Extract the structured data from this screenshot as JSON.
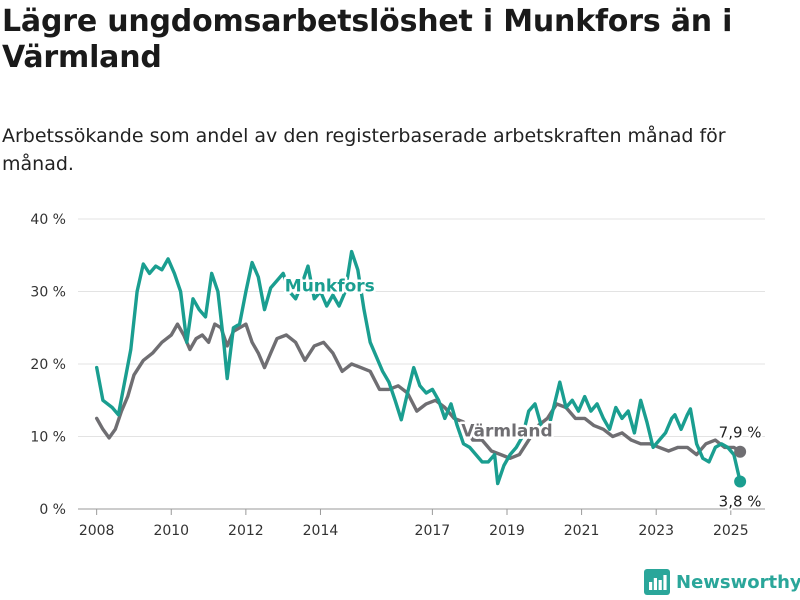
{
  "title": "Lägre ungdomsarbetslöshet i Munkfors än i Värmland",
  "subtitle": "Arbetssökande som andel av den registerbaserade arbetskraften månad för månad.",
  "brand": {
    "name": "Newsworthy",
    "icon": "bar-chart-logo-icon"
  },
  "colors": {
    "munkfors": "#1a9e90",
    "varmland": "#6f6e72",
    "grid": "#e3e3e3"
  },
  "chart_data": {
    "type": "line",
    "ylim": [
      0,
      40
    ],
    "xlim": [
      "2007-07",
      "2025-12"
    ],
    "yticks": [
      0,
      10,
      20,
      30,
      40
    ],
    "ytick_labels": [
      "0 %",
      "10 %",
      "20 %",
      "30 %",
      "40 %"
    ],
    "xticks": [
      "2008-01",
      "2010-01",
      "2012-01",
      "2014-01",
      "2017-01",
      "2019-01",
      "2021-01",
      "2023-01",
      "2025-01"
    ],
    "xtick_labels": [
      "2008",
      "2010",
      "2012",
      "2014",
      "2017",
      "2019",
      "2021",
      "2023",
      "2025"
    ],
    "grid": true,
    "series": [
      {
        "name": "Munkfors",
        "color": "#1a9e90",
        "points": [
          [
            "2008-01",
            19.5
          ],
          [
            "2008-03",
            15.0
          ],
          [
            "2008-06",
            14.0
          ],
          [
            "2008-08",
            13.0
          ],
          [
            "2008-10",
            17.5
          ],
          [
            "2008-12",
            22.0
          ],
          [
            "2009-02",
            30.0
          ],
          [
            "2009-04",
            33.8
          ],
          [
            "2009-06",
            32.5
          ],
          [
            "2009-08",
            33.5
          ],
          [
            "2009-10",
            33.0
          ],
          [
            "2009-12",
            34.5
          ],
          [
            "2010-02",
            32.5
          ],
          [
            "2010-04",
            30.0
          ],
          [
            "2010-06",
            23.0
          ],
          [
            "2010-08",
            29.0
          ],
          [
            "2010-10",
            27.5
          ],
          [
            "2010-12",
            26.5
          ],
          [
            "2011-02",
            32.5
          ],
          [
            "2011-04",
            30.0
          ],
          [
            "2011-06",
            22.5
          ],
          [
            "2011-07",
            18.0
          ],
          [
            "2011-09",
            25.0
          ],
          [
            "2011-11",
            25.5
          ],
          [
            "2012-01",
            30.0
          ],
          [
            "2012-03",
            34.0
          ],
          [
            "2012-05",
            32.0
          ],
          [
            "2012-07",
            27.5
          ],
          [
            "2012-09",
            30.5
          ],
          [
            "2012-11",
            31.5
          ],
          [
            "2013-01",
            32.5
          ],
          [
            "2013-03",
            30.0
          ],
          [
            "2013-05",
            29.0
          ],
          [
            "2013-07",
            31.0
          ],
          [
            "2013-09",
            33.5
          ],
          [
            "2013-11",
            29.0
          ],
          [
            "2014-01",
            30.0
          ],
          [
            "2014-03",
            28.0
          ],
          [
            "2014-05",
            29.5
          ],
          [
            "2014-07",
            28.0
          ],
          [
            "2014-09",
            30.0
          ],
          [
            "2014-11",
            35.5
          ],
          [
            "2015-01",
            33.0
          ],
          [
            "2015-03",
            27.5
          ],
          [
            "2015-05",
            23.0
          ],
          [
            "2015-07",
            21.0
          ],
          [
            "2015-09",
            19.0
          ],
          [
            "2015-11",
            17.5
          ],
          [
            "2016-01",
            15.0
          ],
          [
            "2016-03",
            12.3
          ],
          [
            "2016-05",
            16.0
          ],
          [
            "2016-07",
            19.5
          ],
          [
            "2016-09",
            17.0
          ],
          [
            "2016-11",
            16.0
          ],
          [
            "2017-01",
            16.5
          ],
          [
            "2017-03",
            15.0
          ],
          [
            "2017-05",
            12.5
          ],
          [
            "2017-07",
            14.5
          ],
          [
            "2017-09",
            11.5
          ],
          [
            "2017-11",
            9.0
          ],
          [
            "2018-01",
            8.5
          ],
          [
            "2018-03",
            7.5
          ],
          [
            "2018-05",
            6.5
          ],
          [
            "2018-07",
            6.5
          ],
          [
            "2018-09",
            7.5
          ],
          [
            "2018-10",
            3.5
          ],
          [
            "2018-12",
            6.0
          ],
          [
            "2019-02",
            7.5
          ],
          [
            "2019-04",
            8.5
          ],
          [
            "2019-06",
            10.0
          ],
          [
            "2019-08",
            13.5
          ],
          [
            "2019-10",
            14.5
          ],
          [
            "2019-12",
            11.5
          ],
          [
            "2020-02",
            10.5
          ],
          [
            "2020-04",
            14.0
          ],
          [
            "2020-06",
            17.5
          ],
          [
            "2020-08",
            14.0
          ],
          [
            "2020-10",
            15.0
          ],
          [
            "2020-12",
            13.5
          ],
          [
            "2021-02",
            15.5
          ],
          [
            "2021-04",
            13.5
          ],
          [
            "2021-06",
            14.5
          ],
          [
            "2021-08",
            12.5
          ],
          [
            "2021-10",
            11.0
          ],
          [
            "2021-12",
            14.0
          ],
          [
            "2022-02",
            12.5
          ],
          [
            "2022-04",
            13.5
          ],
          [
            "2022-06",
            10.5
          ],
          [
            "2022-08",
            15.0
          ],
          [
            "2022-10",
            12.0
          ],
          [
            "2022-12",
            8.5
          ],
          [
            "2023-02",
            9.5
          ],
          [
            "2023-04",
            10.5
          ],
          [
            "2023-06",
            12.5
          ],
          [
            "2023-07",
            13.0
          ],
          [
            "2023-09",
            11.0
          ],
          [
            "2023-11",
            13.0
          ],
          [
            "2023-12",
            13.8
          ],
          [
            "2024-02",
            9.0
          ],
          [
            "2024-04",
            7.0
          ],
          [
            "2024-06",
            6.5
          ],
          [
            "2024-08",
            8.5
          ],
          [
            "2024-10",
            9.0
          ],
          [
            "2024-12",
            8.5
          ],
          [
            "2025-02",
            7.5
          ],
          [
            "2025-04",
            3.8
          ]
        ]
      },
      {
        "name": "Värmland",
        "color": "#6f6e72",
        "points": [
          [
            "2008-01",
            12.5
          ],
          [
            "2008-03",
            11.0
          ],
          [
            "2008-05",
            9.8
          ],
          [
            "2008-07",
            11.0
          ],
          [
            "2008-09",
            13.5
          ],
          [
            "2008-11",
            15.5
          ],
          [
            "2009-01",
            18.5
          ],
          [
            "2009-04",
            20.5
          ],
          [
            "2009-07",
            21.5
          ],
          [
            "2009-10",
            23.0
          ],
          [
            "2010-01",
            24.0
          ],
          [
            "2010-03",
            25.5
          ],
          [
            "2010-05",
            24.0
          ],
          [
            "2010-07",
            22.0
          ],
          [
            "2010-09",
            23.5
          ],
          [
            "2010-11",
            24.0
          ],
          [
            "2011-01",
            23.0
          ],
          [
            "2011-03",
            25.5
          ],
          [
            "2011-05",
            25.0
          ],
          [
            "2011-07",
            22.5
          ],
          [
            "2011-09",
            24.5
          ],
          [
            "2011-11",
            25.0
          ],
          [
            "2012-01",
            25.5
          ],
          [
            "2012-03",
            23.0
          ],
          [
            "2012-05",
            21.5
          ],
          [
            "2012-07",
            19.5
          ],
          [
            "2012-09",
            21.5
          ],
          [
            "2012-11",
            23.5
          ],
          [
            "2013-02",
            24.0
          ],
          [
            "2013-05",
            23.0
          ],
          [
            "2013-08",
            20.5
          ],
          [
            "2013-11",
            22.5
          ],
          [
            "2014-02",
            23.0
          ],
          [
            "2014-05",
            21.5
          ],
          [
            "2014-08",
            19.0
          ],
          [
            "2014-11",
            20.0
          ],
          [
            "2015-02",
            19.5
          ],
          [
            "2015-05",
            19.0
          ],
          [
            "2015-08",
            16.5
          ],
          [
            "2015-11",
            16.5
          ],
          [
            "2016-02",
            17.0
          ],
          [
            "2016-05",
            16.0
          ],
          [
            "2016-08",
            13.5
          ],
          [
            "2016-11",
            14.5
          ],
          [
            "2017-02",
            15.0
          ],
          [
            "2017-05",
            14.0
          ],
          [
            "2017-08",
            12.5
          ],
          [
            "2017-11",
            12.0
          ],
          [
            "2018-02",
            9.5
          ],
          [
            "2018-05",
            9.5
          ],
          [
            "2018-08",
            8.0
          ],
          [
            "2018-11",
            7.5
          ],
          [
            "2019-02",
            7.0
          ],
          [
            "2019-05",
            7.5
          ],
          [
            "2019-08",
            9.5
          ],
          [
            "2019-11",
            11.5
          ],
          [
            "2020-02",
            12.5
          ],
          [
            "2020-05",
            14.5
          ],
          [
            "2020-08",
            14.0
          ],
          [
            "2020-11",
            12.5
          ],
          [
            "2021-02",
            12.5
          ],
          [
            "2021-05",
            11.5
          ],
          [
            "2021-08",
            11.0
          ],
          [
            "2021-11",
            10.0
          ],
          [
            "2022-02",
            10.5
          ],
          [
            "2022-05",
            9.5
          ],
          [
            "2022-08",
            9.0
          ],
          [
            "2022-11",
            9.0
          ],
          [
            "2023-02",
            8.5
          ],
          [
            "2023-05",
            8.0
          ],
          [
            "2023-08",
            8.5
          ],
          [
            "2023-11",
            8.5
          ],
          [
            "2024-02",
            7.5
          ],
          [
            "2024-05",
            9.0
          ],
          [
            "2024-08",
            9.5
          ],
          [
            "2024-11",
            8.5
          ],
          [
            "2025-02",
            8.5
          ],
          [
            "2025-04",
            7.9
          ]
        ]
      }
    ],
    "end_labels": [
      {
        "series": "Värmland",
        "text": "7,9 %",
        "value": 7.9,
        "position": "above"
      },
      {
        "series": "Munkfors",
        "text": "3,8 %",
        "value": 3.8,
        "position": "below"
      }
    ],
    "series_labels": [
      {
        "series": "Munkfors",
        "text": "Munkfors",
        "at": [
          "2014-04",
          30.0
        ]
      },
      {
        "series": "Värmland",
        "text": "Värmland",
        "at": [
          "2019-01",
          10.0
        ]
      }
    ]
  }
}
